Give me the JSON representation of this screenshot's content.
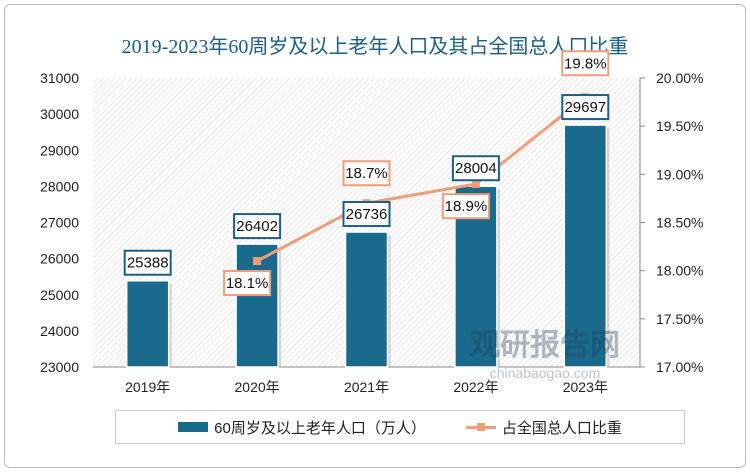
{
  "chart_data": {
    "type": "bar+line",
    "title": "2019-2023年60周岁及以上老年人口及其占全国总人口比重",
    "categories": [
      "2019年",
      "2020年",
      "2021年",
      "2022年",
      "2023年"
    ],
    "series": [
      {
        "name": "60周岁及以上老年人口（万人）",
        "type": "bar",
        "axis": "left",
        "values": [
          25388,
          26402,
          26736,
          28004,
          29697
        ],
        "labels": [
          "25388",
          "26402",
          "26736",
          "28004",
          "29697"
        ],
        "color": "#1a6a8d"
      },
      {
        "name": "占全国总人口比重",
        "type": "line",
        "axis": "right",
        "values": [
          null,
          18.1,
          18.7,
          18.9,
          19.8
        ],
        "labels": [
          null,
          "18.1%",
          "18.7%",
          "18.9%",
          "19.8%"
        ],
        "color": "#ef9e78"
      }
    ],
    "yleft": {
      "lim": [
        23000,
        31000
      ],
      "ticks": [
        "23000",
        "24000",
        "25000",
        "26000",
        "27000",
        "28000",
        "29000",
        "30000",
        "31000"
      ]
    },
    "yright": {
      "lim": [
        17,
        20
      ],
      "ticks": [
        "17.00%",
        "17.50%",
        "18.00%",
        "18.50%",
        "19.00%",
        "19.50%",
        "20.00%"
      ]
    },
    "legend": "bottom",
    "watermark": "观研报告网 chinabaogao.com"
  }
}
